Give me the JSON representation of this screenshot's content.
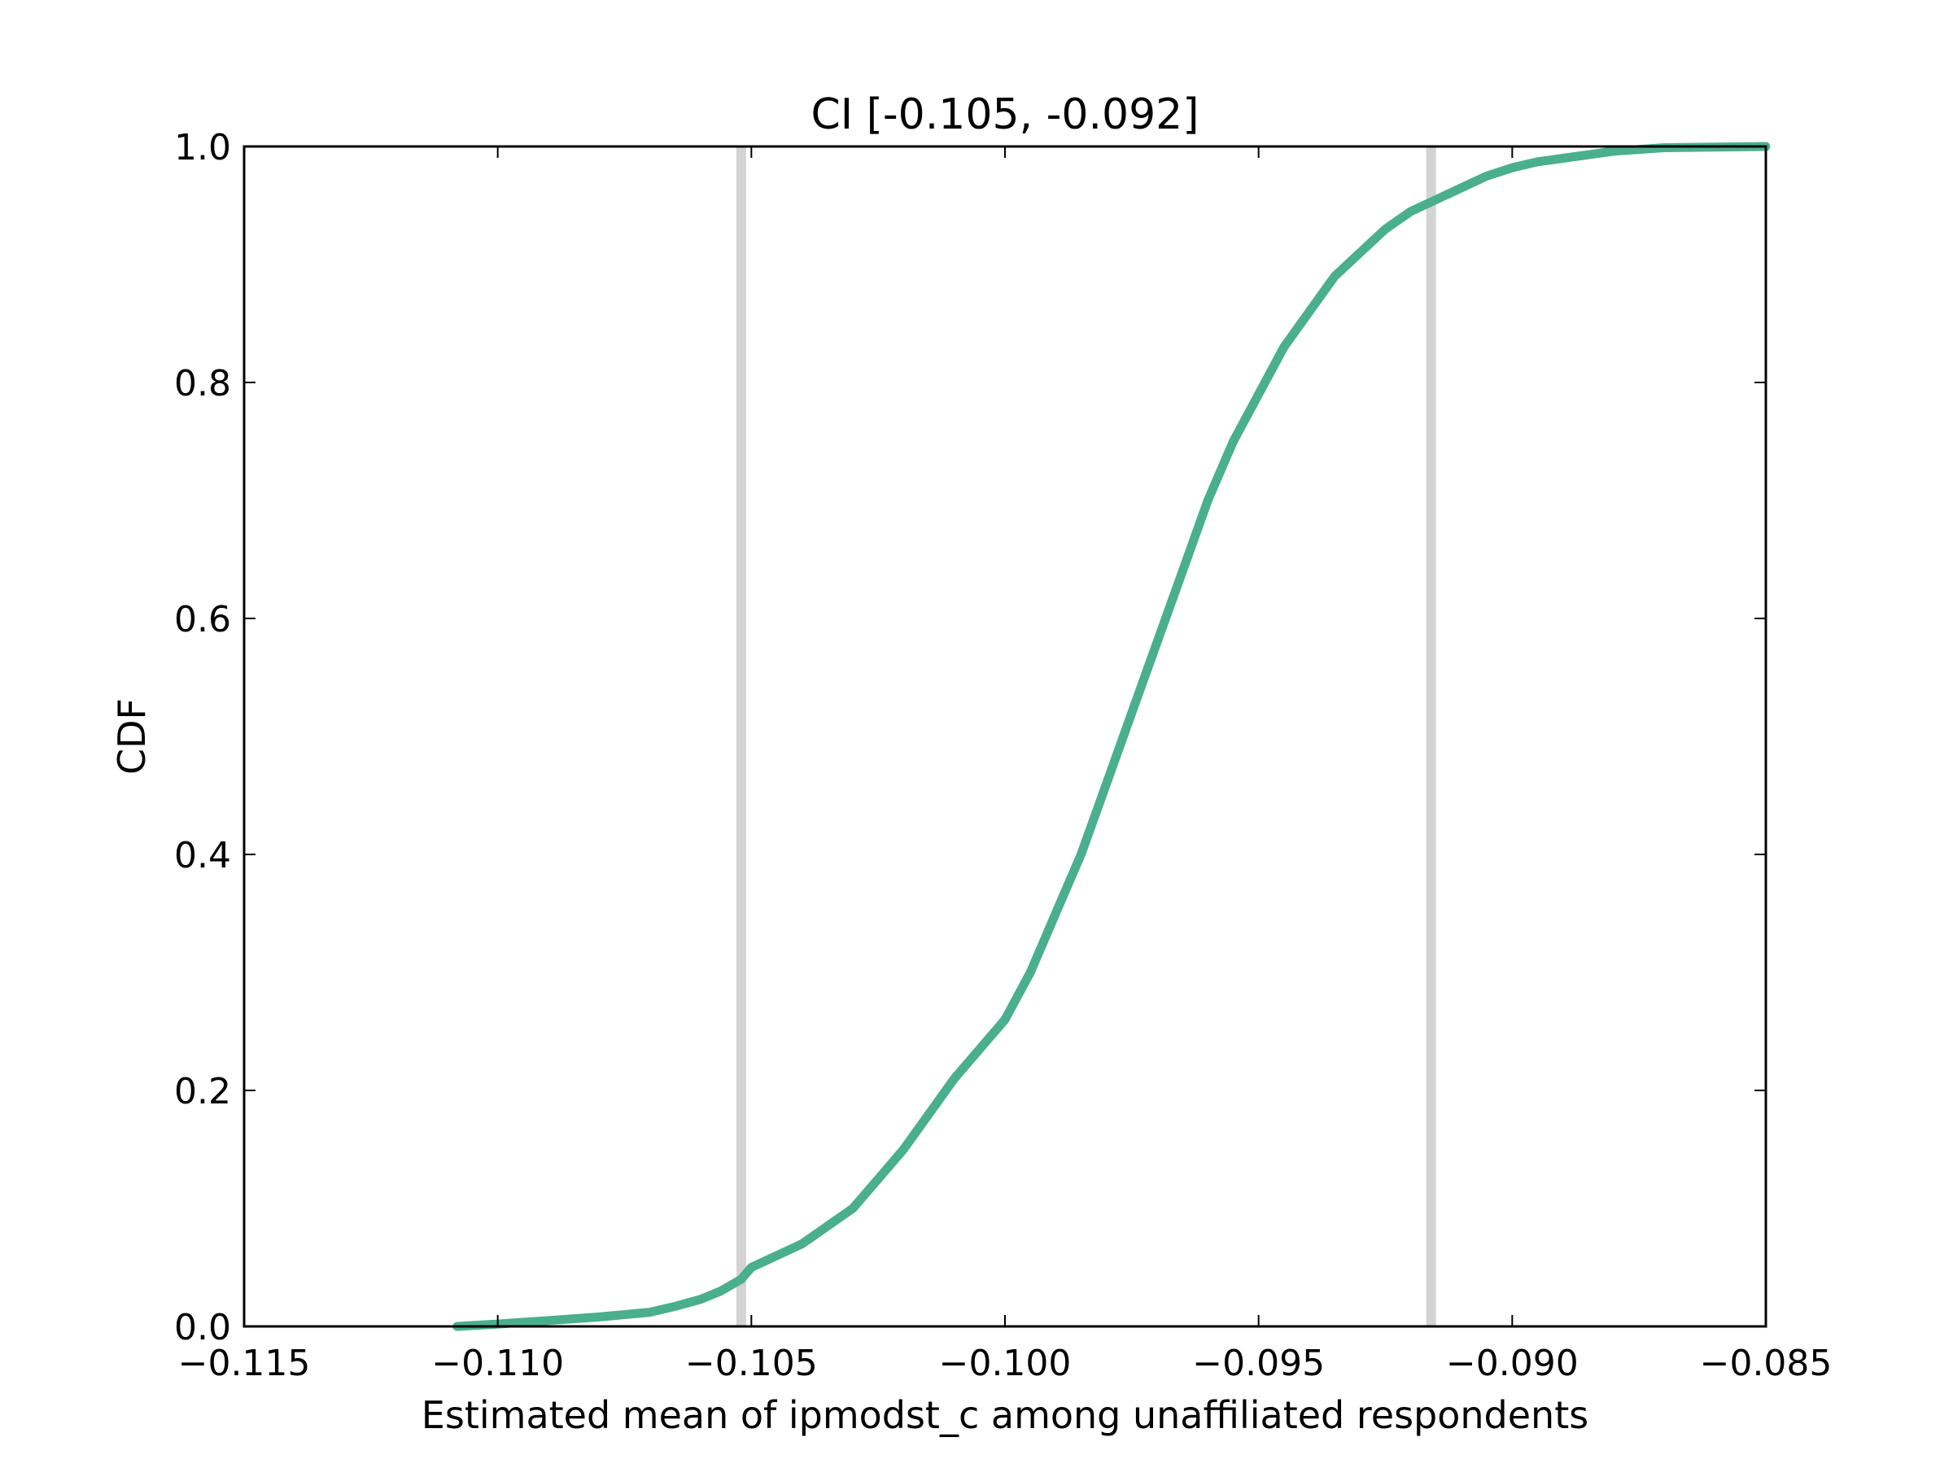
{
  "chart_data": {
    "type": "line",
    "title": "CI [-0.105, -0.092]",
    "xlabel": "Estimated mean of ipmodst_c among unaffiliated respondents",
    "ylabel": "CDF",
    "xlim": [
      -0.115,
      -0.085
    ],
    "ylim": [
      0.0,
      1.0
    ],
    "grid": false,
    "x_ticks": [
      -0.115,
      -0.11,
      -0.105,
      -0.1,
      -0.095,
      -0.09,
      -0.085
    ],
    "x_tick_labels": [
      "−0.115",
      "−0.110",
      "−0.105",
      "−0.100",
      "−0.095",
      "−0.090",
      "−0.085"
    ],
    "y_ticks": [
      0.0,
      0.2,
      0.4,
      0.6,
      0.8,
      1.0
    ],
    "y_tick_labels": [
      "0.0",
      "0.2",
      "0.4",
      "0.6",
      "0.8",
      "1.0"
    ],
    "vertical_lines": [
      {
        "x": -0.1052,
        "color": "#d3d3d3"
      },
      {
        "x": -0.0916,
        "color": "#d3d3d3"
      }
    ],
    "series": [
      {
        "color": "#4aaf8c",
        "points": [
          [
            -0.1108,
            0.0
          ],
          [
            -0.11,
            0.002
          ],
          [
            -0.109,
            0.005
          ],
          [
            -0.108,
            0.008
          ],
          [
            -0.107,
            0.012
          ],
          [
            -0.1065,
            0.017
          ],
          [
            -0.106,
            0.023
          ],
          [
            -0.1056,
            0.03
          ],
          [
            -0.1052,
            0.04
          ],
          [
            -0.105,
            0.05
          ],
          [
            -0.1045,
            0.06
          ],
          [
            -0.104,
            0.07
          ],
          [
            -0.1035,
            0.085
          ],
          [
            -0.103,
            0.1
          ],
          [
            -0.1025,
            0.125
          ],
          [
            -0.102,
            0.15
          ],
          [
            -0.1015,
            0.18
          ],
          [
            -0.101,
            0.21
          ],
          [
            -0.1005,
            0.235
          ],
          [
            -0.1,
            0.26
          ],
          [
            -0.0995,
            0.3
          ],
          [
            -0.099,
            0.35
          ],
          [
            -0.0985,
            0.4
          ],
          [
            -0.098,
            0.46
          ],
          [
            -0.0975,
            0.52
          ],
          [
            -0.097,
            0.58
          ],
          [
            -0.0965,
            0.64
          ],
          [
            -0.096,
            0.7
          ],
          [
            -0.0955,
            0.75
          ],
          [
            -0.095,
            0.79
          ],
          [
            -0.0945,
            0.83
          ],
          [
            -0.094,
            0.86
          ],
          [
            -0.0935,
            0.89
          ],
          [
            -0.093,
            0.91
          ],
          [
            -0.0925,
            0.93
          ],
          [
            -0.092,
            0.945
          ],
          [
            -0.0915,
            0.955
          ],
          [
            -0.091,
            0.965
          ],
          [
            -0.0905,
            0.975
          ],
          [
            -0.09,
            0.982
          ],
          [
            -0.0895,
            0.987
          ],
          [
            -0.089,
            0.99
          ],
          [
            -0.0885,
            0.993
          ],
          [
            -0.088,
            0.996
          ],
          [
            -0.087,
            0.999
          ],
          [
            -0.085,
            1.0
          ]
        ]
      }
    ]
  }
}
